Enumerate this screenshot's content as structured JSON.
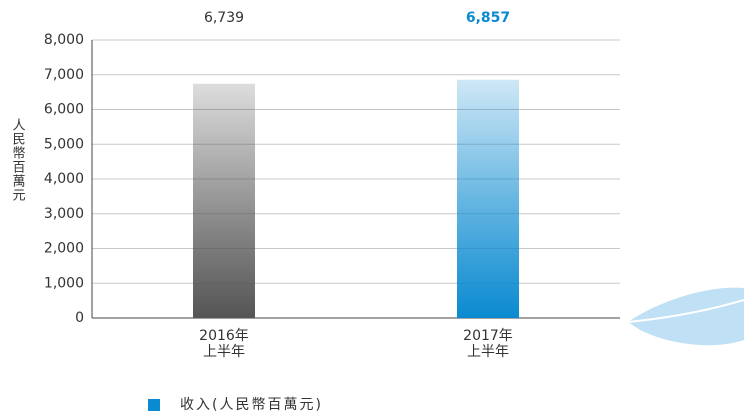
{
  "chart_data": {
    "type": "bar",
    "y_label": "人民幣百萬元",
    "categories": [
      "2016年\n上半年",
      "2017年\n上半年"
    ],
    "series": [
      {
        "name": "收入(人民幣百萬元)",
        "color": "#0a8ad0",
        "values": [
          6739,
          6857
        ],
        "value_labels": [
          "6,739",
          "6,857"
        ],
        "colors": [
          "#555555",
          "#0a8ad0"
        ]
      }
    ],
    "ylim": [
      0,
      8000
    ],
    "yticks": [
      0,
      {
        "value": 1000,
        "label": "1,000"
      },
      {
        "value": 2000,
        "label": "2,000"
      },
      {
        "value": 3000,
        "label": "3,000"
      },
      {
        "value": 4000,
        "label": "4,000"
      },
      {
        "value": 5000,
        "label": "5,000"
      },
      {
        "value": 6000,
        "label": "6,000"
      },
      {
        "value": 7000,
        "label": "7,000"
      },
      {
        "value": 8000,
        "label": "8,000"
      }
    ],
    "grid": true
  }
}
